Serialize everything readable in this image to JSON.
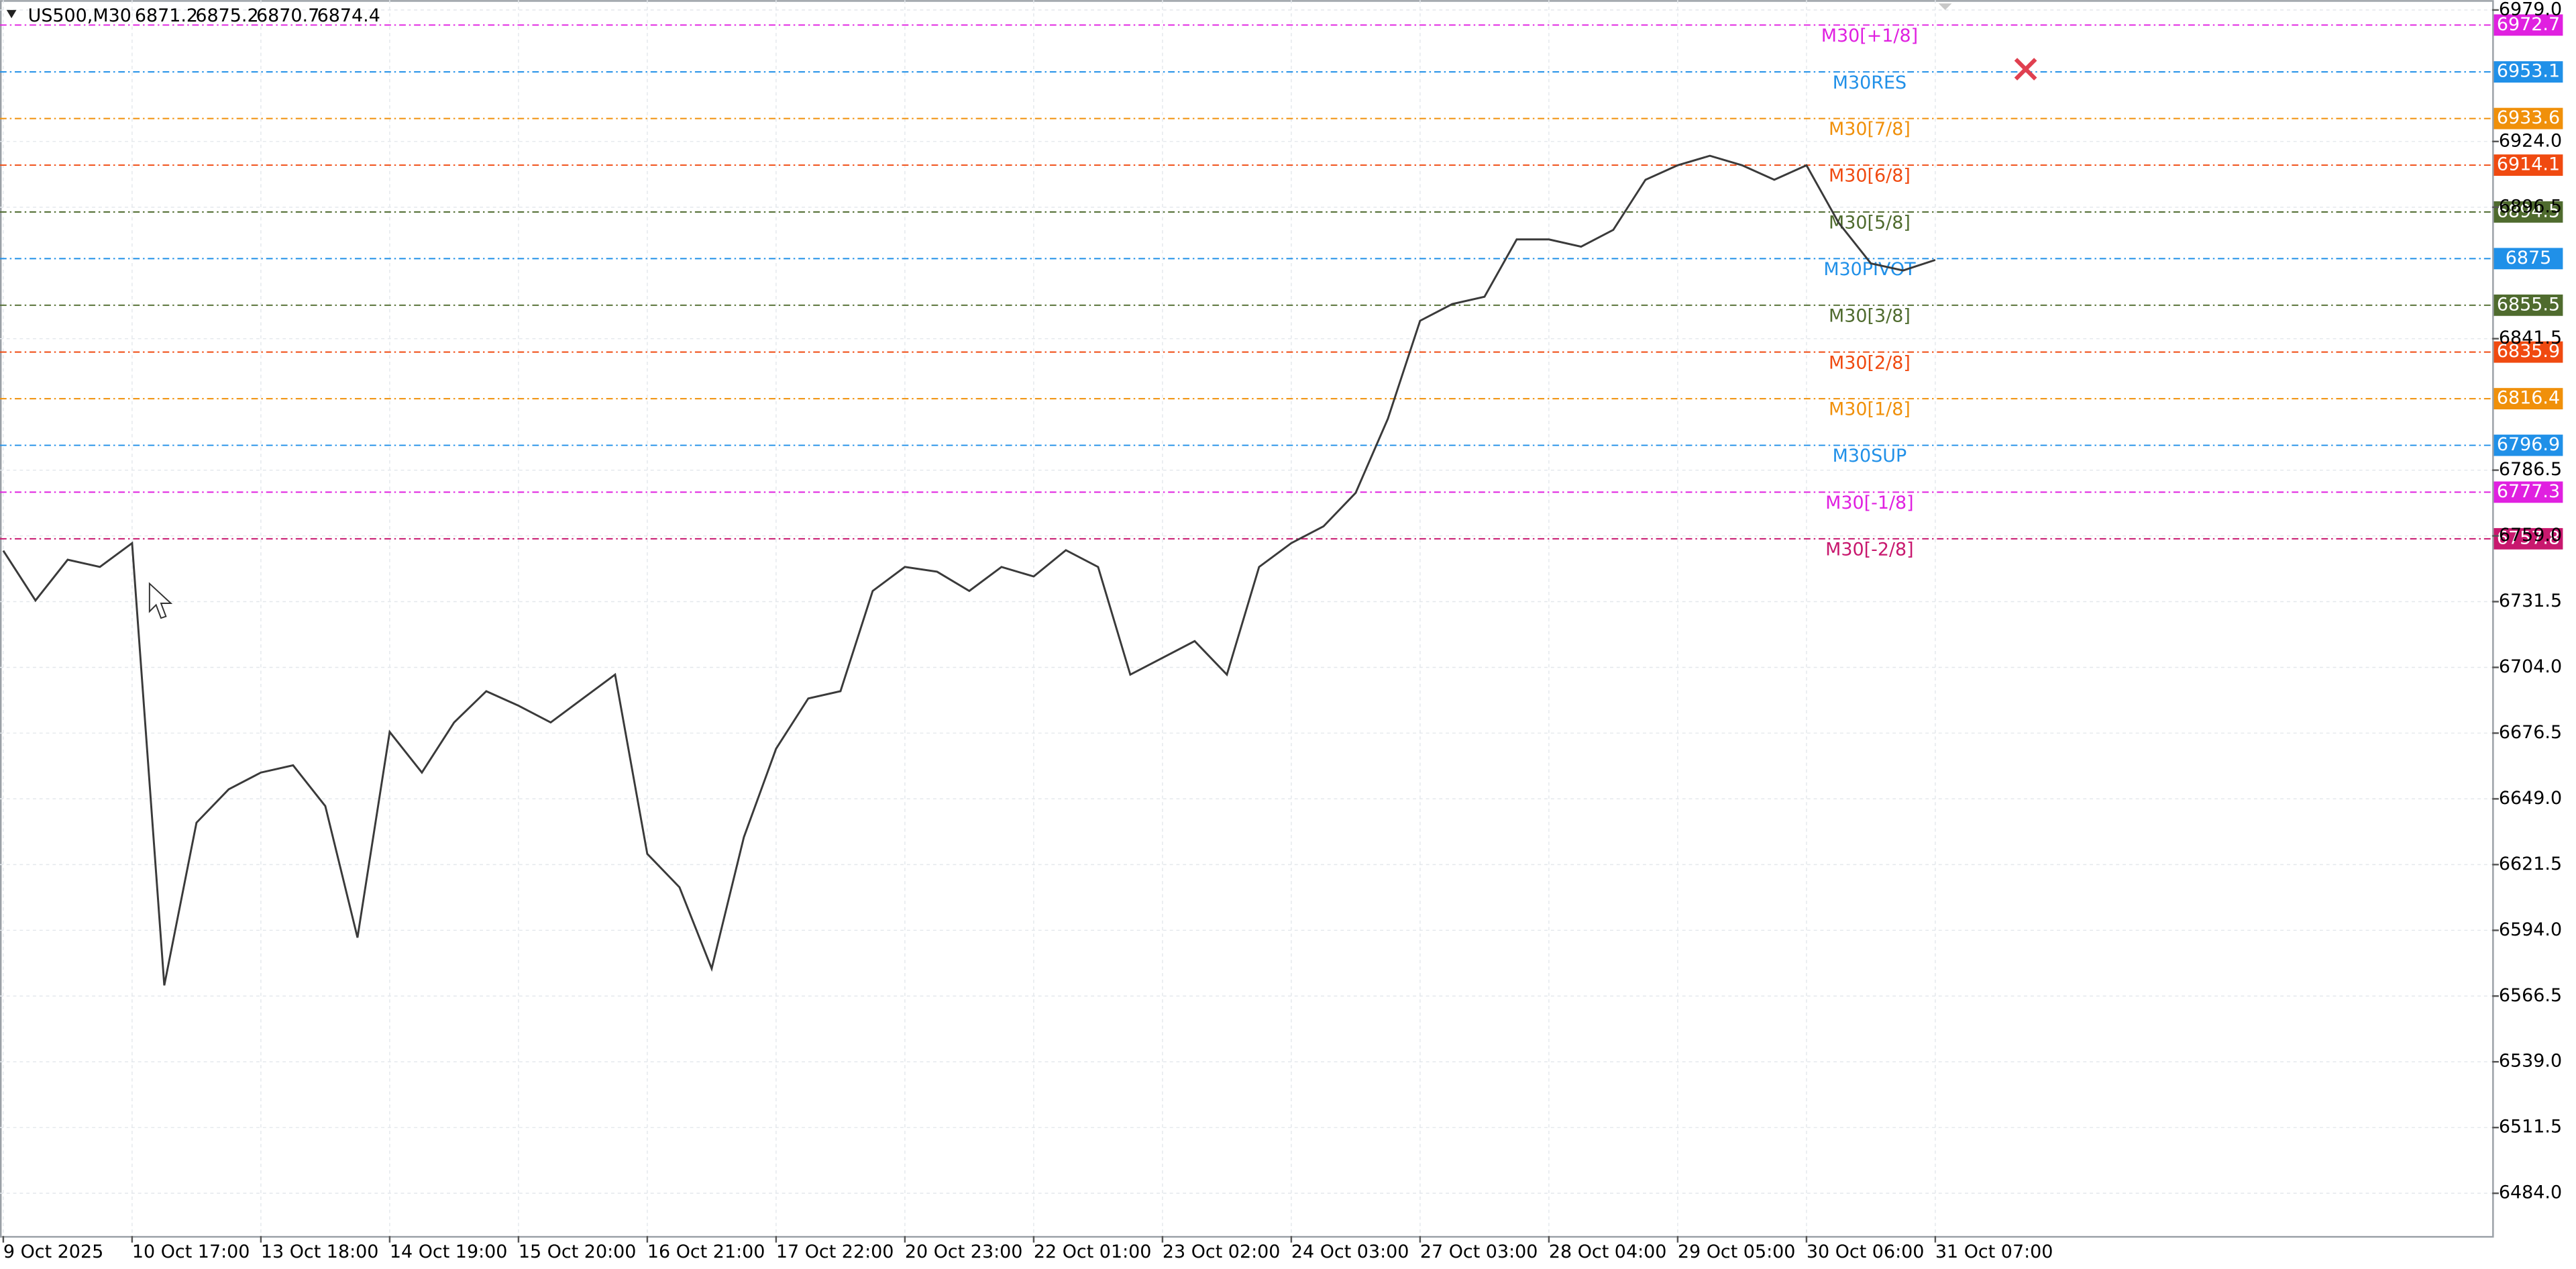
{
  "chart_data": {
    "type": "line",
    "symbol": "US500,M30",
    "ohlc": [
      6871.2,
      6875.2,
      6870.7,
      6874.4
    ],
    "categories": [
      "9 Oct 2025",
      null,
      null,
      null,
      "10 Oct 17:00",
      null,
      null,
      null,
      "13 Oct 18:00",
      null,
      null,
      null,
      "14 Oct 19:00",
      null,
      null,
      null,
      "15 Oct 20:00",
      null,
      null,
      null,
      "16 Oct 21:00",
      null,
      null,
      null,
      "17 Oct 22:00",
      null,
      null,
      null,
      "20 Oct 23:00",
      null,
      null,
      null,
      "22 Oct 01:00",
      null,
      null,
      null,
      "23 Oct 02:00",
      null,
      null,
      null,
      "24 Oct 03:00",
      null,
      null,
      null,
      "27 Oct 03:00",
      null,
      null,
      null,
      "28 Oct 04:00",
      null,
      null,
      null,
      "29 Oct 05:00",
      null,
      null,
      null,
      "30 Oct 06:00",
      null,
      null,
      null,
      "31 Oct 07:00"
    ],
    "series": [
      {
        "color": "#3a3a3a",
        "values": [
          6752.8,
          6732,
          6749,
          6746,
          6756,
          6571,
          6639,
          6653,
          6660,
          6663,
          6646,
          6591,
          6677,
          6660,
          6681,
          6694,
          6688,
          6681,
          6691,
          6701,
          6626,
          6612,
          6578,
          6633,
          6670,
          6691,
          6694,
          6736,
          6746,
          6744,
          6736,
          6746,
          6742,
          6753,
          6746,
          6701,
          6708,
          6715,
          6701,
          6746,
          6756,
          6763,
          6777,
          6808,
          6849,
          6856,
          6859,
          6883,
          6883,
          6880,
          6887,
          6908,
          6914,
          6918,
          6914,
          6908,
          6914,
          6890,
          6873,
          6870,
          6874.4
        ]
      }
    ],
    "ylim": [
      6484.0,
      6979.0
    ],
    "yticks": [
      {
        "value": 6979,
        "label": "6979.0"
      },
      {
        "value": 6924,
        "label": "6924.0"
      },
      {
        "value": 6896.5,
        "label": "6896.5"
      },
      {
        "value": 6841.5,
        "label": "6841.5"
      },
      {
        "value": 6786.5,
        "label": "6786.5"
      },
      {
        "value": 6759,
        "label": "6759.0"
      },
      {
        "value": 6731.5,
        "label": "6731.5"
      },
      {
        "value": 6704,
        "label": "6704.0"
      },
      {
        "value": 6676.5,
        "label": "6676.5"
      },
      {
        "value": 6649,
        "label": "6649.0"
      },
      {
        "value": 6621.5,
        "label": "6621.5"
      },
      {
        "value": 6594,
        "label": "6594.0"
      },
      {
        "value": 6566.5,
        "label": "6566.5"
      },
      {
        "value": 6539,
        "label": "6539.0"
      },
      {
        "value": 6511.5,
        "label": "6511.5"
      },
      {
        "value": 6484,
        "label": "6484.0"
      }
    ],
    "grid": true,
    "levels": [
      {
        "name": "M30[+1/8]",
        "value": 6972.7,
        "color": "#e020e0"
      },
      {
        "name": "M30RES",
        "value": 6953.1,
        "color": "#2090e8"
      },
      {
        "name": "M30[7/8]",
        "value": 6933.6,
        "color": "#f0900a"
      },
      {
        "name": "M30[6/8]",
        "value": 6914.1,
        "color": "#f04a10"
      },
      {
        "name": "M30[5/8]",
        "value": 6894.5,
        "color": "#4f6b2e"
      },
      {
        "name": "M30PIVOT",
        "value": 6875.0,
        "color": "#2090e8"
      },
      {
        "name": "M30[3/8]",
        "value": 6855.5,
        "color": "#4f6b2e"
      },
      {
        "name": "M30[2/8]",
        "value": 6835.9,
        "color": "#f04a10"
      },
      {
        "name": "M30[1/8]",
        "value": 6816.4,
        "color": "#f0900a"
      },
      {
        "name": "M30SUP",
        "value": 6796.9,
        "color": "#2090e8"
      },
      {
        "name": "M30[-1/8]",
        "value": 6777.3,
        "color": "#e020e0"
      },
      {
        "name": "M30[-2/8]",
        "value": 6757.8,
        "color": "#c8186e"
      }
    ]
  }
}
